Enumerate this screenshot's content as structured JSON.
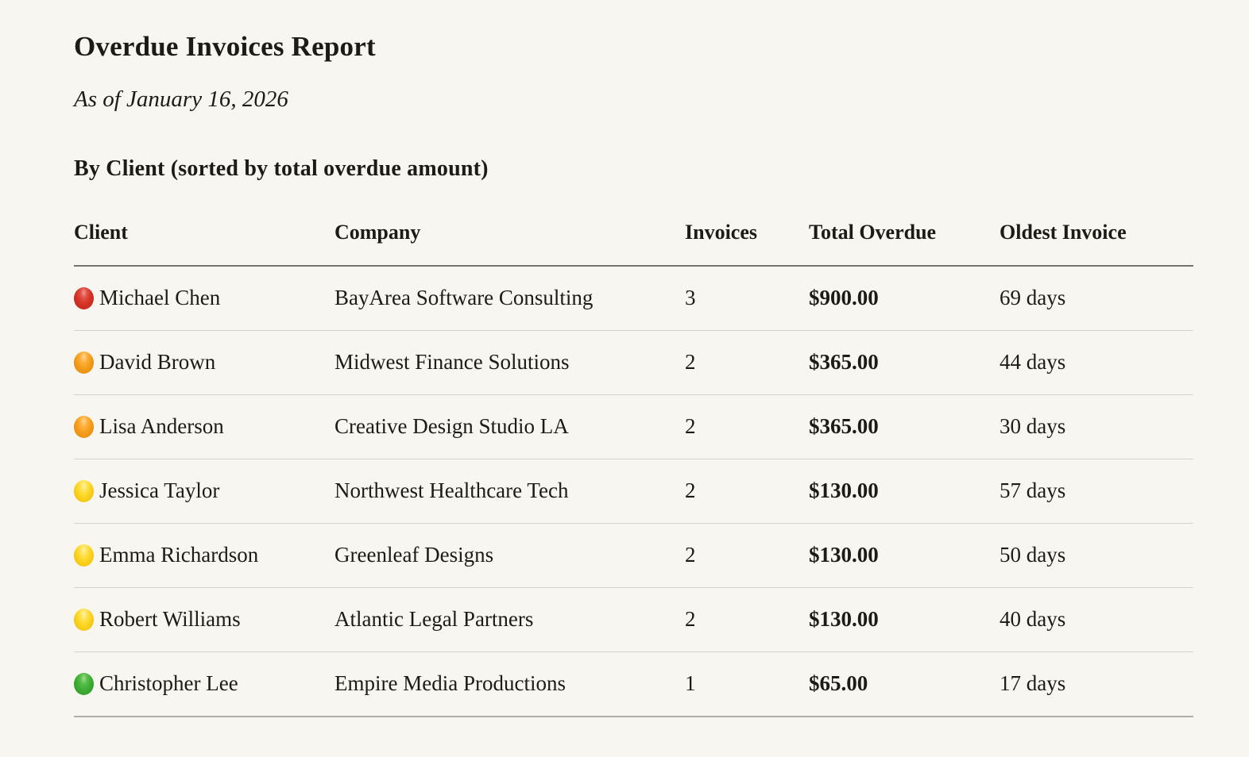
{
  "page": {
    "title": "Overdue Invoices Report",
    "as_of": "As of January 16, 2026",
    "section_heading": "By Client (sorted by total overdue amount)"
  },
  "table": {
    "headers": {
      "client": "Client",
      "company": "Company",
      "invoices": "Invoices",
      "total_overdue": "Total Overdue",
      "oldest_invoice": "Oldest Invoice"
    },
    "rows": [
      {
        "status": "red",
        "client": "Michael Chen",
        "company": "BayArea Software Consulting",
        "invoices": "3",
        "total_overdue": "$900.00",
        "oldest_invoice": "69 days"
      },
      {
        "status": "orange",
        "client": "David Brown",
        "company": "Midwest Finance Solutions",
        "invoices": "2",
        "total_overdue": "$365.00",
        "oldest_invoice": "44 days"
      },
      {
        "status": "orange",
        "client": "Lisa Anderson",
        "company": "Creative Design Studio LA",
        "invoices": "2",
        "total_overdue": "$365.00",
        "oldest_invoice": "30 days"
      },
      {
        "status": "yellow",
        "client": "Jessica Taylor",
        "company": "Northwest Healthcare Tech",
        "invoices": "2",
        "total_overdue": "$130.00",
        "oldest_invoice": "57 days"
      },
      {
        "status": "yellow",
        "client": "Emma Richardson",
        "company": "Greenleaf Designs",
        "invoices": "2",
        "total_overdue": "$130.00",
        "oldest_invoice": "50 days"
      },
      {
        "status": "yellow",
        "client": "Robert Williams",
        "company": "Atlantic Legal Partners",
        "invoices": "2",
        "total_overdue": "$130.00",
        "oldest_invoice": "40 days"
      },
      {
        "status": "green",
        "client": "Christopher Lee",
        "company": "Empire Media Productions",
        "invoices": "1",
        "total_overdue": "$65.00",
        "oldest_invoice": "17 days"
      }
    ]
  },
  "colors": {
    "background": "#f8f6f0",
    "text": "#1d1b16",
    "row_divider": "#d6d3cc",
    "header_divider": "#74726c",
    "bottom_divider": "#b1aea7",
    "status_red": "#d63425",
    "status_orange": "#f59d1c",
    "status_yellow": "#fbd420",
    "status_green": "#3fae35"
  }
}
